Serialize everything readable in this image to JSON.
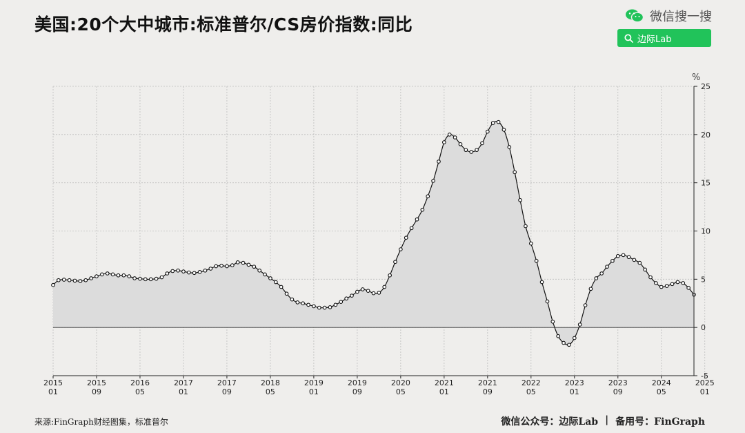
{
  "header": {
    "title": "美国:20个大中城市:标准普尔/CS房价指数:同比",
    "brand_label": "微信搜一搜",
    "search_label": "边际Lab"
  },
  "footer": {
    "source": "来源:FinGraph财经图集，标准普尔",
    "account": "微信公众号：边际Lab",
    "separator": "|",
    "record": "备用号：FinGraph"
  },
  "colors": {
    "background": "#efeeec",
    "line": "#111111",
    "area": "#dcdcdc",
    "accent_green": "#21c35a"
  },
  "chart_data": {
    "type": "area",
    "title": "美国:20个大中城市:标准普尔/CS房价指数:同比",
    "unit": "%",
    "ylim": [
      -5,
      25
    ],
    "yticks": [
      -5,
      0,
      5,
      10,
      15,
      20,
      25
    ],
    "y_axis_position": "right",
    "grid": true,
    "markers": "hollow-circle",
    "x_start": "2015-01",
    "xticks": [
      {
        "year": "2015",
        "month": "01",
        "index": 0
      },
      {
        "year": "2015",
        "month": "09",
        "index": 8
      },
      {
        "year": "2016",
        "month": "05",
        "index": 16
      },
      {
        "year": "2017",
        "month": "01",
        "index": 24
      },
      {
        "year": "2017",
        "month": "09",
        "index": 32
      },
      {
        "year": "2018",
        "month": "05",
        "index": 40
      },
      {
        "year": "2019",
        "month": "01",
        "index": 48
      },
      {
        "year": "2019",
        "month": "09",
        "index": 56
      },
      {
        "year": "2020",
        "month": "05",
        "index": 64
      },
      {
        "year": "2021",
        "month": "01",
        "index": 72
      },
      {
        "year": "2021",
        "month": "09",
        "index": 80
      },
      {
        "year": "2022",
        "month": "05",
        "index": 88
      },
      {
        "year": "2023",
        "month": "01",
        "index": 96
      },
      {
        "year": "2023",
        "month": "09",
        "index": 104
      },
      {
        "year": "2024",
        "month": "05",
        "index": 112
      },
      {
        "year": "2025",
        "month": "01",
        "index": 120
      }
    ],
    "values": [
      4.4,
      4.9,
      4.95,
      4.9,
      4.85,
      4.8,
      4.9,
      5.1,
      5.3,
      5.5,
      5.6,
      5.5,
      5.4,
      5.4,
      5.3,
      5.1,
      5.05,
      5.0,
      5.0,
      5.05,
      5.2,
      5.6,
      5.85,
      5.9,
      5.8,
      5.7,
      5.65,
      5.75,
      5.9,
      6.1,
      6.35,
      6.4,
      6.35,
      6.45,
      6.75,
      6.7,
      6.5,
      6.3,
      5.9,
      5.5,
      5.1,
      4.7,
      4.2,
      3.5,
      2.9,
      2.6,
      2.5,
      2.35,
      2.2,
      2.05,
      2.05,
      2.1,
      2.35,
      2.65,
      3.0,
      3.3,
      3.7,
      3.95,
      3.8,
      3.55,
      3.6,
      4.2,
      5.4,
      6.8,
      8.1,
      9.3,
      10.3,
      11.2,
      12.2,
      13.6,
      15.2,
      17.2,
      19.2,
      20.0,
      19.7,
      19.0,
      18.4,
      18.2,
      18.4,
      19.1,
      20.3,
      21.2,
      21.3,
      20.5,
      18.7,
      16.1,
      13.2,
      10.5,
      8.7,
      6.9,
      4.7,
      2.7,
      0.6,
      -0.9,
      -1.6,
      -1.8,
      -1.1,
      0.3,
      2.3,
      4.0,
      5.1,
      5.6,
      6.3,
      6.9,
      7.4,
      7.5,
      7.3,
      7.0,
      6.7,
      6.0,
      5.2,
      4.6,
      4.2,
      4.3,
      4.5,
      4.7,
      4.6,
      4.1,
      3.4
    ]
  }
}
